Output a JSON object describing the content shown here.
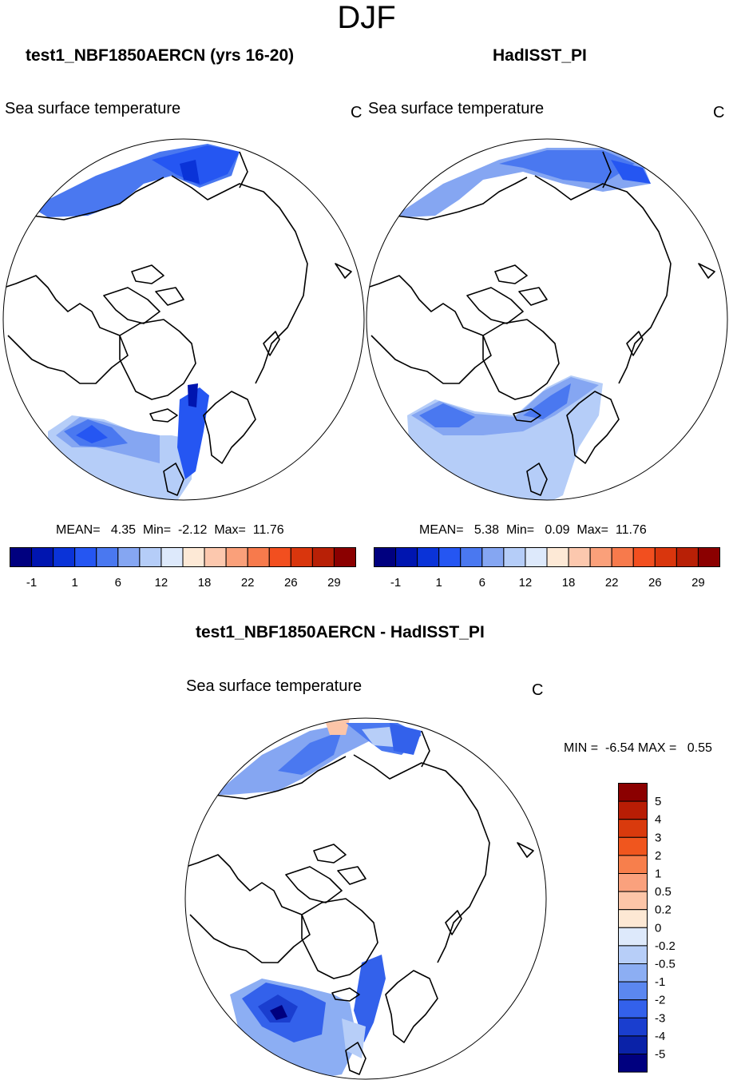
{
  "figure": {
    "title": "DJF",
    "difference_title": "test1_NBF1850AERCN - HadISST_PI"
  },
  "chart_data": [
    {
      "type": "heatmap",
      "projection": "north polar stereographic",
      "title": "test1_NBF1850AERCN (yrs 16-20)",
      "variable": "Sea surface temperature",
      "units": "C",
      "stats": {
        "label": "MEAN=   4.35  Min=  -2.12  Max=  11.76",
        "mean": 4.35,
        "min": -2.12,
        "max": 11.76
      },
      "colorbar": {
        "levels": [
          -1,
          1,
          6,
          12,
          18,
          22,
          26,
          29
        ],
        "tick_labels": [
          "-1",
          "1",
          "6",
          "12",
          "18",
          "22",
          "26",
          "29"
        ],
        "colors": [
          "#00007f",
          "#0015b0",
          "#0a33d8",
          "#2556f2",
          "#4a78f0",
          "#85a6f2",
          "#b5cdf8",
          "#dde9fb",
          "#fde9d6",
          "#fcc8ae",
          "#faa07a",
          "#f77a4c",
          "#f24f1f",
          "#d9360d",
          "#b82006",
          "#8b0000"
        ]
      }
    },
    {
      "type": "heatmap",
      "projection": "north polar stereographic",
      "title": "HadISST_PI",
      "variable": "Sea surface temperature",
      "units": "C",
      "stats": {
        "label": "MEAN=   5.38  Min=   0.09  Max=  11.76",
        "mean": 5.38,
        "min": 0.09,
        "max": 11.76
      },
      "colorbar": {
        "levels": [
          -1,
          1,
          6,
          12,
          18,
          22,
          26,
          29
        ],
        "tick_labels": [
          "-1",
          "1",
          "6",
          "12",
          "18",
          "22",
          "26",
          "29"
        ],
        "colors": [
          "#00007f",
          "#0015b0",
          "#0a33d8",
          "#2556f2",
          "#4a78f0",
          "#85a6f2",
          "#b5cdf8",
          "#dde9fb",
          "#fde9d6",
          "#fcc8ae",
          "#faa07a",
          "#f77a4c",
          "#f24f1f",
          "#d9360d",
          "#b82006",
          "#8b0000"
        ]
      }
    },
    {
      "type": "heatmap",
      "projection": "north polar stereographic",
      "title": "test1_NBF1850AERCN - HadISST_PI",
      "variable": "Sea surface temperature",
      "units": "C",
      "stats": {
        "label": "MIN =  -6.54 MAX =   0.55",
        "min": -6.54,
        "max": 0.55
      },
      "colorbar": {
        "orientation": "vertical",
        "levels": [
          5,
          4,
          3,
          2,
          1,
          0.5,
          0.2,
          0,
          -0.2,
          -0.5,
          -1,
          -2,
          -3,
          -4,
          -5
        ],
        "tick_labels": [
          "5",
          "4",
          "3",
          "2",
          "1",
          "0.5",
          "0.2",
          "0",
          "-0.2",
          "-0.5",
          "-1",
          "-2",
          "-3",
          "-4",
          "-5"
        ],
        "colors": [
          "#8b0000",
          "#b81d05",
          "#d93a0d",
          "#f0561e",
          "#f77f4c",
          "#faa17d",
          "#fcc5a8",
          "#fde8d4",
          "#dde9fb",
          "#b7cef8",
          "#8caef3",
          "#5b87f0",
          "#3361eb",
          "#1a3ecf",
          "#0a22a8",
          "#00007f"
        ]
      }
    }
  ]
}
